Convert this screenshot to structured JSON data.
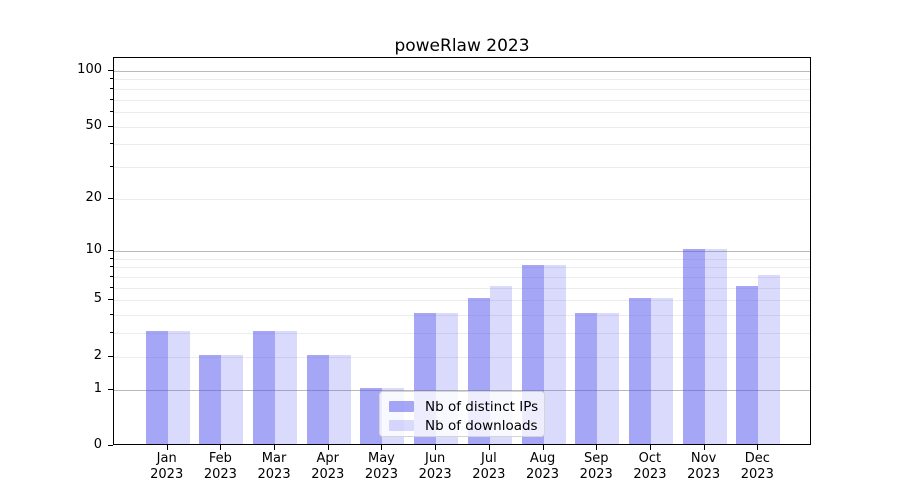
{
  "chart_data": {
    "type": "bar",
    "title": "poweRlaw 2023",
    "x_tick_months": [
      "Jan",
      "Feb",
      "Mar",
      "Apr",
      "May",
      "Jun",
      "Jul",
      "Aug",
      "Sep",
      "Oct",
      "Nov",
      "Dec"
    ],
    "x_tick_year": "2023",
    "series": [
      {
        "name": "Nb of distinct IPs",
        "color": "rgba(85,85,240,0.52)",
        "values": [
          3,
          2,
          3,
          2,
          1,
          4,
          5,
          8,
          4,
          5,
          10,
          6
        ]
      },
      {
        "name": "Nb of downloads",
        "color": "rgba(85,85,240,0.22)",
        "values": [
          3,
          2,
          3,
          2,
          1,
          4,
          6,
          8,
          4,
          5,
          10,
          7
        ]
      }
    ],
    "y_axis": {
      "scale": "log10(value+1)",
      "labeled_ticks": [
        0,
        1,
        2,
        5,
        10,
        20,
        50,
        100
      ],
      "major_gridlines": [
        1,
        10,
        100
      ],
      "minor_gridlines": [
        2,
        3,
        4,
        5,
        6,
        7,
        8,
        9,
        20,
        30,
        40,
        50,
        60,
        70,
        80,
        90
      ],
      "ylim": [
        0,
        117
      ]
    },
    "grid": "horizontal",
    "legend_position": "lower center"
  },
  "legend": {
    "items": [
      {
        "label": "Nb of distinct IPs",
        "color": "rgba(85,85,240,0.52)"
      },
      {
        "label": "Nb of downloads",
        "color": "rgba(85,85,240,0.22)"
      }
    ]
  },
  "colors": {
    "bar_base": "#5555f0",
    "major_grid": "#b9b9b9",
    "minor_grid": "#ececec",
    "spine": "#000000",
    "text": "#000000",
    "legend_border": "#d4d4d4",
    "legend_bg": "rgba(255,255,255,0.8)"
  }
}
